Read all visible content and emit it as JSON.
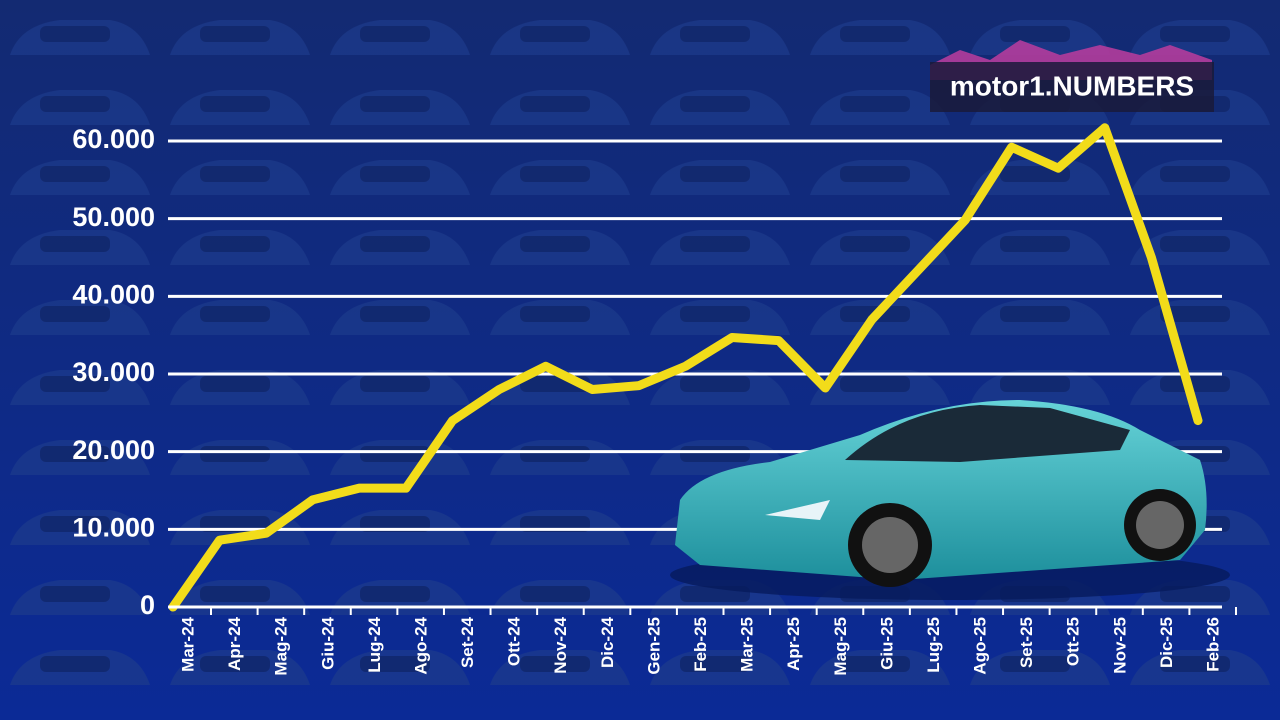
{
  "brand": "motor1.NUMBERS",
  "chart_data": {
    "type": "line",
    "categories": [
      "Mar-24",
      "Apr-24",
      "Mag-24",
      "Giu-24",
      "Lug-24",
      "Ago-24",
      "Set-24",
      "Ott-24",
      "Nov-24",
      "Dic-24",
      "Gen-25",
      "Feb-25",
      "Mar-25",
      "Apr-25",
      "Mag-25",
      "Giu-25",
      "Lug-25",
      "Ago-25",
      "Set-25",
      "Ott-25",
      "Nov-25",
      "Dic-25",
      "Feb-26"
    ],
    "values": [
      0,
      8600,
      9500,
      13800,
      15300,
      15300,
      24000,
      28000,
      31000,
      28000,
      28500,
      31000,
      34700,
      34300,
      28200,
      37000,
      43400,
      49800,
      59200,
      56500,
      61700,
      45000,
      24000
    ],
    "color": "#f2dc1a",
    "ylim": [
      0,
      60000
    ],
    "yticks": [
      0,
      {
        "value": 10000,
        "label": "10.000"
      },
      {
        "value": 20000,
        "label": "20.000"
      },
      {
        "value": 30000,
        "label": "30.000"
      },
      {
        "value": 40000,
        "label": "40.000"
      },
      {
        "value": 50000,
        "label": "50.000"
      },
      {
        "value": 60000,
        "label": "60.000"
      }
    ],
    "grid": true
  }
}
